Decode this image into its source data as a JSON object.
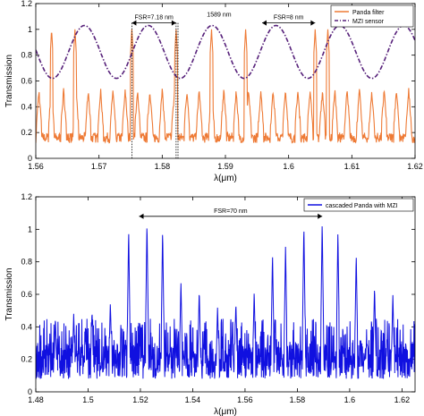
{
  "chart_data": [
    {
      "type": "line",
      "xlabel": "λ(μm)",
      "ylabel": "Transmission",
      "xlim": [
        1.56,
        1.62
      ],
      "ylim": [
        0,
        1.2
      ],
      "x_ticks": [
        "1.56",
        "1.57",
        "1.58",
        "1.59",
        "1.6",
        "1.61",
        "1.62"
      ],
      "y_ticks": [
        "0",
        "0.2",
        "0.4",
        "0.6",
        "0.8",
        "1",
        "1.2"
      ],
      "grid": false,
      "legend_position": "top-right",
      "series": [
        {
          "name": "Panda filter",
          "color": "#ee7a35",
          "style": "solid",
          "description": "comb of narrow resonance peaks; peaks reach 1.0 at the positions listed, baseline 0.1–0.5",
          "full_peaks_x": [
            1.5625,
            1.5662,
            1.5752,
            1.5822,
            1.5878,
            1.5932,
            1.6042,
            1.6062
          ]
        },
        {
          "name": "MZI sensor",
          "color": "#56207a",
          "style": "dash-dot",
          "description": "sinusoid oscillating between 0.62 and 1.03",
          "period": 0.0101,
          "peak_x": 1.5576,
          "min": 0.62,
          "max": 1.03
        }
      ],
      "annotations": [
        {
          "text": "FSR=7.18 nm",
          "x_from": 1.5752,
          "x_to": 1.5822,
          "y": 1.05
        },
        {
          "text": "1589 nm",
          "x": 1.589,
          "y": 1.07
        },
        {
          "text": "FSR=8 nm",
          "x_from": 1.5958,
          "x_to": 1.6042,
          "y": 1.05
        }
      ]
    },
    {
      "type": "line",
      "xlabel": "λ(μm)",
      "ylabel": "Transmission",
      "xlim": [
        1.48,
        1.625
      ],
      "ylim": [
        0,
        1.2
      ],
      "x_ticks": [
        "1.48",
        "1.5",
        "1.52",
        "1.54",
        "1.56",
        "1.58",
        "1.6",
        "1.62"
      ],
      "y_ticks": [
        "0",
        "0.2",
        "0.4",
        "0.6",
        "0.8",
        "1",
        "1.2"
      ],
      "grid": false,
      "legend_position": "top-right",
      "series": [
        {
          "name": "cascaded Panda with MZI",
          "color": "#1010e0",
          "style": "solid",
          "description": "dense comb, baseline 0.05–0.5 with recurring peaks",
          "peaks": [
            {
              "x": 1.5085,
              "y": 0.55
            },
            {
              "x": 1.5155,
              "y": 1.0
            },
            {
              "x": 1.5225,
              "y": 1.05
            },
            {
              "x": 1.5285,
              "y": 1.0
            },
            {
              "x": 1.5355,
              "y": 0.68
            },
            {
              "x": 1.5425,
              "y": 0.63
            },
            {
              "x": 1.5705,
              "y": 0.85
            },
            {
              "x": 1.5755,
              "y": 0.9
            },
            {
              "x": 1.5825,
              "y": 1.03
            },
            {
              "x": 1.5895,
              "y": 1.05
            },
            {
              "x": 1.5955,
              "y": 0.99
            },
            {
              "x": 1.6025,
              "y": 0.85
            },
            {
              "x": 1.6095,
              "y": 0.65
            },
            {
              "x": 1.4945,
              "y": 0.48
            },
            {
              "x": 1.5015,
              "y": 0.5
            },
            {
              "x": 1.5495,
              "y": 0.52
            },
            {
              "x": 1.5565,
              "y": 0.55
            },
            {
              "x": 1.5635,
              "y": 0.62
            },
            {
              "x": 1.6165,
              "y": 0.6
            },
            {
              "x": 1.4875,
              "y": 0.46
            }
          ]
        }
      ],
      "annotations": [
        {
          "text": "FSR=70 nm",
          "x_from": 1.5195,
          "x_to": 1.5895,
          "y": 1.08
        }
      ]
    }
  ]
}
